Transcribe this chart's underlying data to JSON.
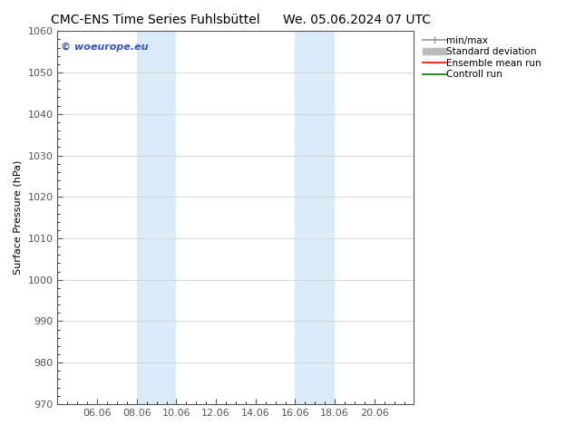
{
  "title_left": "CMC-ENS Time Series Fuhlsbüttel",
  "title_right": "We. 05.06.2024 07 UTC",
  "ylabel": "Surface Pressure (hPa)",
  "ylim": [
    970,
    1060
  ],
  "yticks": [
    970,
    980,
    990,
    1000,
    1010,
    1020,
    1030,
    1040,
    1050,
    1060
  ],
  "x_tick_labels": [
    "06.06",
    "08.06",
    "10.06",
    "12.06",
    "14.06",
    "16.06",
    "18.06",
    "20.06"
  ],
  "x_tick_positions": [
    24,
    48,
    72,
    96,
    120,
    144,
    168,
    192
  ],
  "xlim": [
    0,
    216
  ],
  "shaded_regions": [
    {
      "x_start": 48,
      "x_end": 72
    },
    {
      "x_start": 144,
      "x_end": 168
    }
  ],
  "shaded_color": "#daeaf6",
  "watermark_text": "© woeurope.eu",
  "watermark_color": "#3355bb",
  "legend_items": [
    {
      "label": "min/max",
      "color": "#999999",
      "lw": 1.2
    },
    {
      "label": "Standard deviation",
      "color": "#bbbbbb",
      "lw": 5
    },
    {
      "label": "Ensemble mean run",
      "color": "#ff0000",
      "lw": 1.2
    },
    {
      "label": "Controll run",
      "color": "#007700",
      "lw": 1.2
    }
  ],
  "bg_color": "#ffffff",
  "spine_color": "#555555",
  "tick_color": "#555555",
  "title_fontsize": 10,
  "axis_label_fontsize": 8,
  "tick_fontsize": 8,
  "legend_fontsize": 7.5
}
